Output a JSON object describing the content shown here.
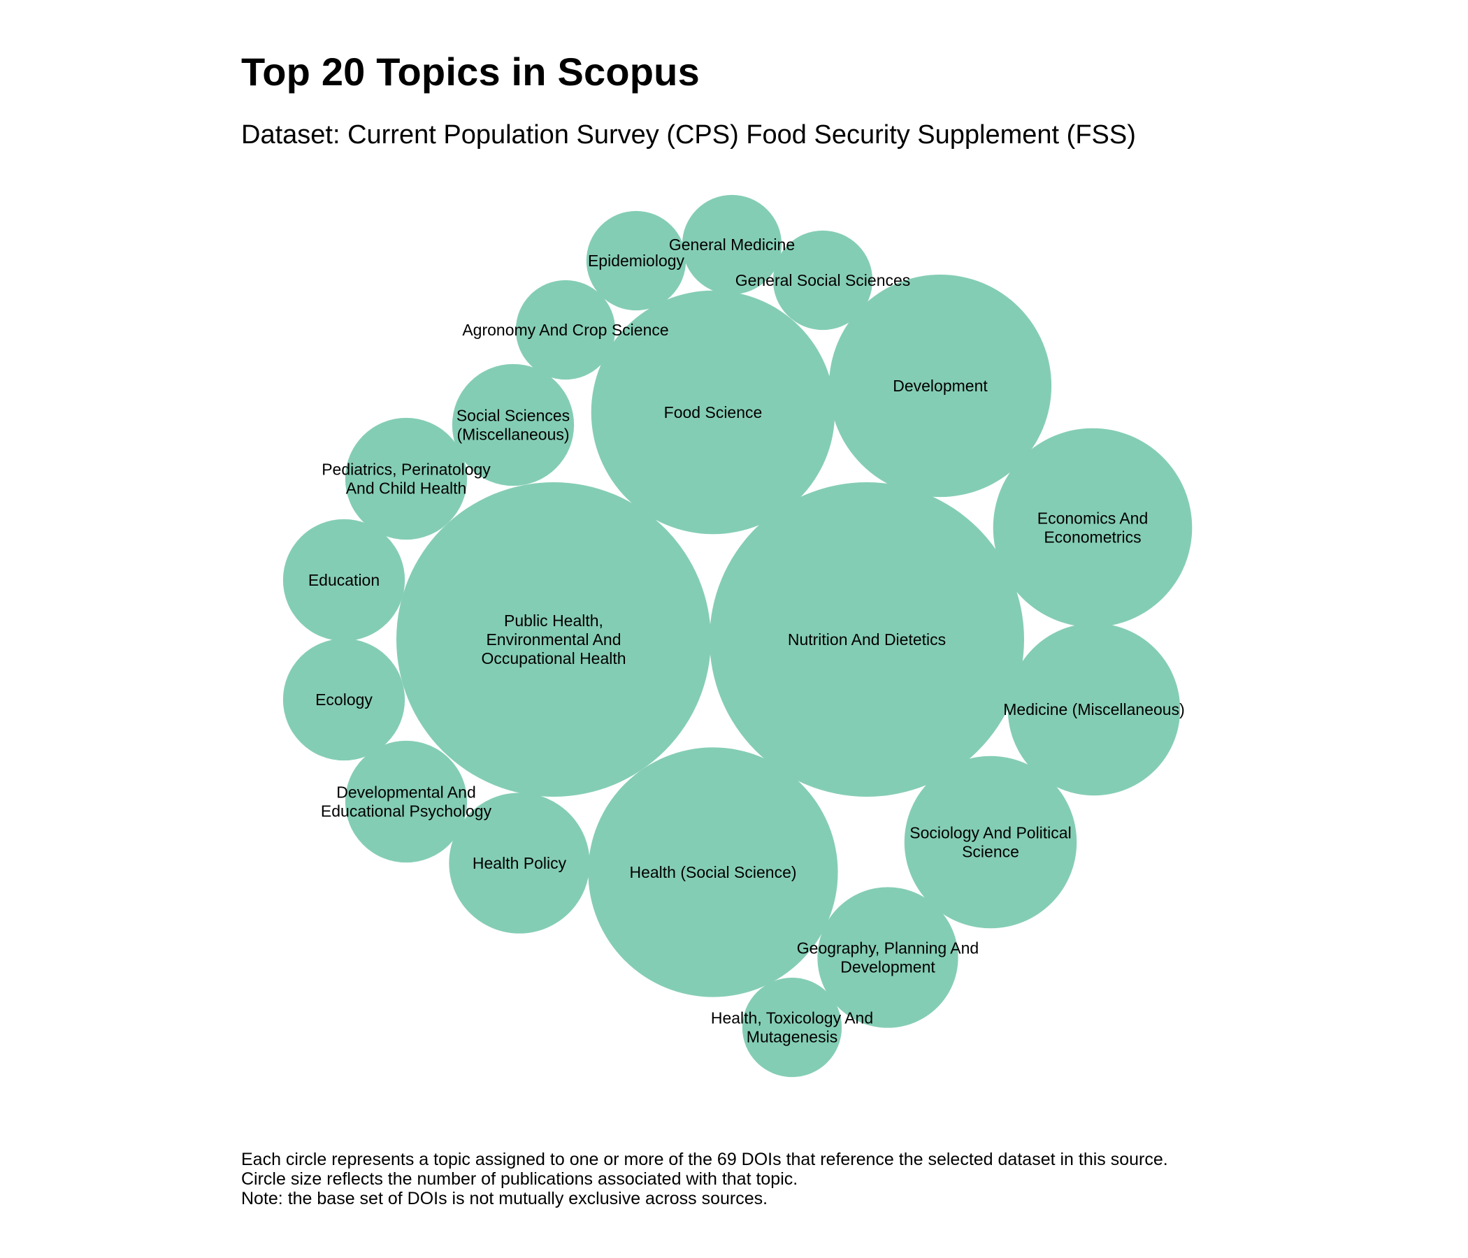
{
  "chart_data": {
    "type": "bubble",
    "title": "Top 20 Topics in Scopus",
    "subtitle": "Dataset: Current Population Survey (CPS) Food Security Supplement (FSS)",
    "fill_color": "#84cdb5",
    "label_color": "#000000",
    "topics": [
      {
        "label_lines": [
          "Nutrition And Dietetics"
        ],
        "relative_size": 1.0
      },
      {
        "label_lines": [
          "Public Health,",
          "Environmental And",
          "Occupational Health"
        ],
        "relative_size": 1.0
      },
      {
        "label_lines": [
          "Health (Social Science)"
        ],
        "relative_size": 0.63
      },
      {
        "label_lines": [
          "Food Science"
        ],
        "relative_size": 0.6
      },
      {
        "label_lines": [
          "Development"
        ],
        "relative_size": 0.5
      },
      {
        "label_lines": [
          "Economics And",
          "Econometrics"
        ],
        "relative_size": 0.4
      },
      {
        "label_lines": [
          "Sociology And Political",
          "Science"
        ],
        "relative_size": 0.3
      },
      {
        "label_lines": [
          "Medicine (Miscellaneous)"
        ],
        "relative_size": 0.3
      },
      {
        "label_lines": [
          "Geography, Planning And",
          "Development"
        ],
        "relative_size": 0.2
      },
      {
        "label_lines": [
          "Health Policy"
        ],
        "relative_size": 0.2
      },
      {
        "label_lines": [
          "Education"
        ],
        "relative_size": 0.15
      },
      {
        "label_lines": [
          "Ecology"
        ],
        "relative_size": 0.15
      },
      {
        "label_lines": [
          "Pediatrics, Perinatology",
          "And Child Health"
        ],
        "relative_size": 0.15
      },
      {
        "label_lines": [
          "Developmental And",
          "Educational Psychology"
        ],
        "relative_size": 0.15
      },
      {
        "label_lines": [
          "Social Sciences",
          "(Miscellaneous)"
        ],
        "relative_size": 0.15
      },
      {
        "label_lines": [
          "Agronomy And Crop Science"
        ],
        "relative_size": 0.1
      },
      {
        "label_lines": [
          "Epidemiology"
        ],
        "relative_size": 0.1
      },
      {
        "label_lines": [
          "General Medicine"
        ],
        "relative_size": 0.1
      },
      {
        "label_lines": [
          "General Social Sciences"
        ],
        "relative_size": 0.1
      },
      {
        "label_lines": [
          "Health, Toxicology And",
          "Mutagenesis"
        ],
        "relative_size": 0.1
      }
    ]
  },
  "footnote": {
    "line1": "Each circle represents a topic assigned to one or more of the 69 DOIs that reference the selected dataset in this source.",
    "line2": "Circle size reflects the number of publications associated with that topic.",
    "line3": "Note: the base set of DOIs is not mutually exclusive across sources."
  }
}
